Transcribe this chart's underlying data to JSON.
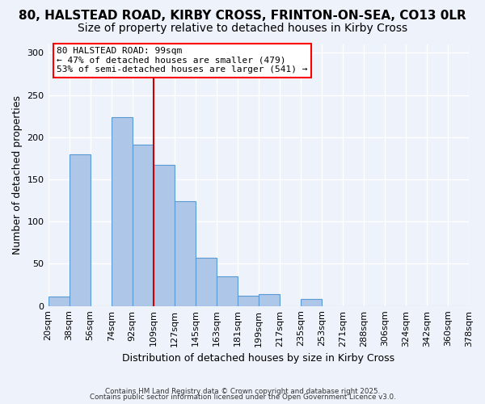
{
  "title_line1": "80, HALSTEAD ROAD, KIRBY CROSS, FRINTON-ON-SEA, CO13 0LR",
  "title_line2": "Size of property relative to detached houses in Kirby Cross",
  "xlabel": "Distribution of detached houses by size in Kirby Cross",
  "ylabel": "Number of detached properties",
  "bin_labels": [
    "20sqm",
    "38sqm",
    "56sqm",
    "74sqm",
    "92sqm",
    "109sqm",
    "127sqm",
    "145sqm",
    "163sqm",
    "181sqm",
    "199sqm",
    "217sqm",
    "235sqm",
    "253sqm",
    "271sqm",
    "288sqm",
    "306sqm",
    "324sqm",
    "342sqm",
    "360sqm",
    "378sqm"
  ],
  "bar_values": [
    11,
    180,
    0,
    224,
    191,
    167,
    124,
    57,
    35,
    12,
    14,
    0,
    8,
    0,
    0,
    0,
    0,
    0,
    0,
    0
  ],
  "bar_color": "#aec6e8",
  "bar_edge_color": "#5b9bd5",
  "vline_x": 4.5,
  "vline_color": "#cc0000",
  "annotation_box_text": "80 HALSTEAD ROAD: 99sqm\n← 47% of detached houses are smaller (479)\n53% of semi-detached houses are larger (541) →",
  "ylim": [
    0,
    310
  ],
  "yticks": [
    0,
    50,
    100,
    150,
    200,
    250,
    300
  ],
  "background_color": "#eef2fb",
  "footer_line1": "Contains HM Land Registry data © Crown copyright and database right 2025.",
  "footer_line2": "Contains public sector information licensed under the Open Government Licence v3.0.",
  "title_fontsize": 11,
  "subtitle_fontsize": 10,
  "axis_fontsize": 9,
  "tick_fontsize": 8
}
